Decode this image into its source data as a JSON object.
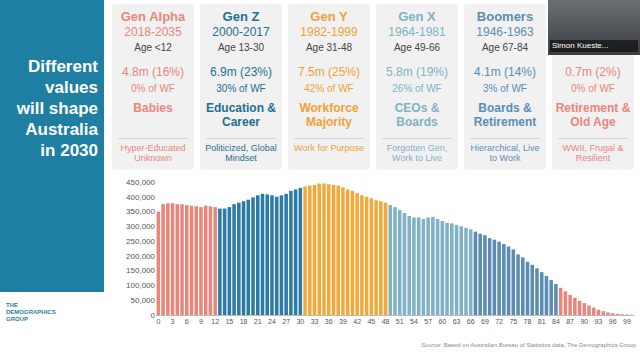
{
  "slide": {
    "title_lines": [
      "Different",
      "values",
      "will shape",
      "Australia",
      "in 2030"
    ],
    "logo_lines": [
      "THE",
      "DEMOGRAPHICS",
      "GROUP"
    ],
    "speaker": "Simon Kueste...",
    "source": "Source: Based on Australian Bureau of Statistics data, The Demographics Group"
  },
  "generations": [
    {
      "name": "Gen Alpha",
      "years": "2018-2035",
      "age": "Age <12",
      "population": "4.8m (16%)",
      "workforce": "0% of WF",
      "stage": "Babies",
      "values": "Hyper-Educated Unknown",
      "color": "#e8867c"
    },
    {
      "name": "Gen Z",
      "years": "2000-2017",
      "age": "Age 13-30",
      "population": "6.9m (23%)",
      "workforce": "30% of WF",
      "stage": "Education & Career",
      "values": "Politicized, Global Mindset",
      "color": "#1f6f93"
    },
    {
      "name": "Gen Y",
      "years": "1982-1999",
      "age": "Age 31-48",
      "population": "7.5m (25%)",
      "workforce": "42% of WF",
      "stage": "Workforce Majority",
      "values": "Work for Purpose",
      "color": "#eea236"
    },
    {
      "name": "Gen X",
      "years": "1964-1981",
      "age": "Age 49-66",
      "population": "5.8m (19%)",
      "workforce": "26% of WF",
      "stage": "CEOs & Boards",
      "values": "Forgotten Gen, Work to Live",
      "color": "#7fb2c6"
    },
    {
      "name": "Boomers",
      "years": "1946-1963",
      "age": "Age 67-84",
      "population": "4.1m (14%)",
      "workforce": "3% of WF",
      "stage": "Boards & Retirement",
      "values": "Hierarchical, Live to Work",
      "color": "#5b8db3"
    },
    {
      "population": "0.7m (2%)",
      "workforce": "0% of WF",
      "stage": "Retirement & Old Age",
      "values": "WWII, Frugal & Resilient",
      "color": "#e8867c"
    }
  ],
  "chart_data": {
    "type": "bar",
    "x": [
      0,
      1,
      2,
      3,
      4,
      5,
      6,
      7,
      8,
      9,
      10,
      11,
      12,
      13,
      14,
      15,
      16,
      17,
      18,
      19,
      20,
      21,
      22,
      23,
      24,
      25,
      26,
      27,
      28,
      29,
      30,
      31,
      32,
      33,
      34,
      35,
      36,
      37,
      38,
      39,
      40,
      41,
      42,
      43,
      44,
      45,
      46,
      47,
      48,
      49,
      50,
      51,
      52,
      53,
      54,
      55,
      56,
      57,
      58,
      59,
      60,
      61,
      62,
      63,
      64,
      65,
      66,
      67,
      68,
      69,
      70,
      71,
      72,
      73,
      74,
      75,
      76,
      77,
      78,
      79,
      80,
      81,
      82,
      83,
      84,
      85,
      86,
      87,
      88,
      89,
      90,
      91,
      92,
      93,
      94,
      95,
      96,
      97,
      98,
      99,
      100
    ],
    "values": [
      350000,
      375000,
      378000,
      378000,
      375000,
      375000,
      372000,
      370000,
      368000,
      365000,
      370000,
      368000,
      365000,
      360000,
      360000,
      365000,
      375000,
      380000,
      385000,
      390000,
      398000,
      405000,
      410000,
      408000,
      405000,
      400000,
      405000,
      410000,
      420000,
      425000,
      430000,
      435000,
      438000,
      440000,
      445000,
      445000,
      442000,
      440000,
      438000,
      432000,
      425000,
      420000,
      412000,
      405000,
      400000,
      395000,
      388000,
      385000,
      380000,
      372000,
      365000,
      355000,
      345000,
      335000,
      330000,
      330000,
      325000,
      330000,
      332000,
      325000,
      318000,
      312000,
      310000,
      305000,
      300000,
      295000,
      290000,
      282000,
      275000,
      270000,
      260000,
      255000,
      248000,
      240000,
      232000,
      222000,
      205000,
      195000,
      180000,
      170000,
      158000,
      145000,
      132000,
      118000,
      105000,
      92000,
      80000,
      68000,
      58000,
      48000,
      40000,
      32000,
      25000,
      18000,
      13000,
      9000,
      6000,
      4000,
      2500,
      1500,
      1000
    ],
    "colors": [
      "#e8867c",
      "#e8867c",
      "#e8867c",
      "#e8867c",
      "#e8867c",
      "#e8867c",
      "#e8867c",
      "#e8867c",
      "#e8867c",
      "#e8867c",
      "#e8867c",
      "#e8867c",
      "#e8867c",
      "#2b7ba6",
      "#2b7ba6",
      "#2b7ba6",
      "#2b7ba6",
      "#2b7ba6",
      "#2b7ba6",
      "#2b7ba6",
      "#2b7ba6",
      "#2b7ba6",
      "#2b7ba6",
      "#2b7ba6",
      "#2b7ba6",
      "#2b7ba6",
      "#2b7ba6",
      "#2b7ba6",
      "#2b7ba6",
      "#2b7ba6",
      "#2b7ba6",
      "#f2a93b",
      "#f2a93b",
      "#f2a93b",
      "#f2a93b",
      "#f2a93b",
      "#f2a93b",
      "#f2a93b",
      "#f2a93b",
      "#f2a93b",
      "#f2a93b",
      "#f2a93b",
      "#f2a93b",
      "#f2a93b",
      "#f2a93b",
      "#f2a93b",
      "#f2a93b",
      "#f2a93b",
      "#f2a93b",
      "#7fb2c6",
      "#7fb2c6",
      "#7fb2c6",
      "#7fb2c6",
      "#7fb2c6",
      "#7fb2c6",
      "#7fb2c6",
      "#7fb2c6",
      "#7fb2c6",
      "#7fb2c6",
      "#7fb2c6",
      "#7fb2c6",
      "#7fb2c6",
      "#7fb2c6",
      "#7fb2c6",
      "#7fb2c6",
      "#7fb2c6",
      "#7fb2c6",
      "#5b8db3",
      "#5b8db3",
      "#5b8db3",
      "#5b8db3",
      "#5b8db3",
      "#5b8db3",
      "#5b8db3",
      "#5b8db3",
      "#5b8db3",
      "#5b8db3",
      "#5b8db3",
      "#5b8db3",
      "#5b8db3",
      "#5b8db3",
      "#5b8db3",
      "#5b8db3",
      "#5b8db3",
      "#5b8db3",
      "#e8867c",
      "#e8867c",
      "#e8867c",
      "#e8867c",
      "#e8867c",
      "#e8867c",
      "#e8867c",
      "#e8867c",
      "#e8867c",
      "#e8867c",
      "#e8867c",
      "#e8867c",
      "#e8867c",
      "#e8867c",
      "#e8867c",
      "#e8867c"
    ],
    "xlim": [
      -0.5,
      100.5
    ],
    "xticks": [
      0,
      3,
      6,
      9,
      12,
      15,
      18,
      21,
      24,
      27,
      30,
      33,
      36,
      39,
      42,
      45,
      48,
      51,
      54,
      57,
      60,
      63,
      66,
      69,
      72,
      75,
      78,
      81,
      84,
      87,
      90,
      93,
      96,
      99
    ],
    "ylim": [
      0,
      450000
    ],
    "yticks": [
      0,
      {
        "value": 50000,
        "label": "50,000"
      },
      {
        "value": 100000,
        "label": "100,000"
      },
      {
        "value": 150000,
        "label": "150,000"
      },
      {
        "value": 200000,
        "label": "200,000"
      },
      {
        "value": 250000,
        "label": "250,000"
      },
      {
        "value": 300000,
        "label": "300,000"
      },
      {
        "value": 350000,
        "label": "350,000"
      },
      {
        "value": 400000,
        "label": "400,000"
      },
      {
        "value": 450000,
        "label": "450,000"
      }
    ],
    "grid": false
  }
}
